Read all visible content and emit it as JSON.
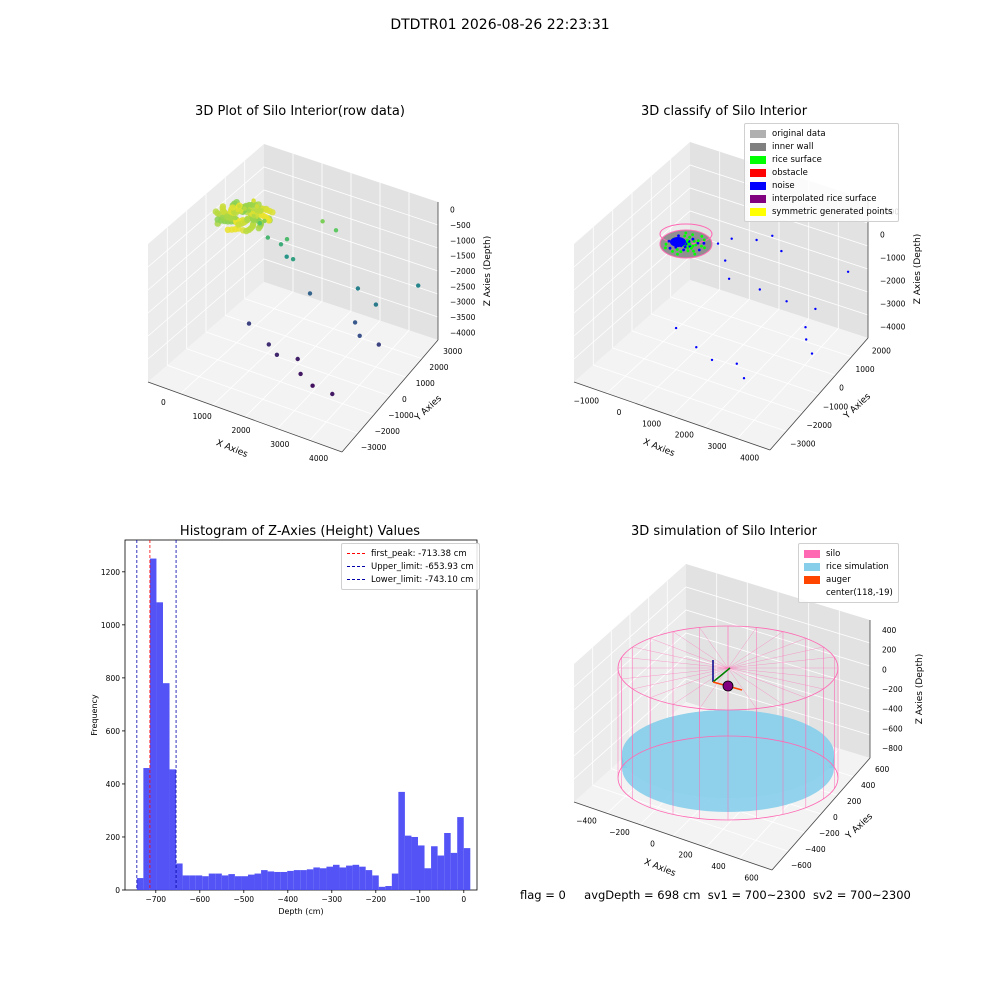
{
  "figure": {
    "title": "DTDTR01 2026-08-26 22:23:31",
    "status": {
      "flag": "flag = 0",
      "avg_depth": "avgDepth = 698 cm",
      "sv1": "sv1 = 700~2300",
      "sv2": "sv2 = 700~2300"
    }
  },
  "chart_data": [
    {
      "type": "scatter",
      "projection": "3d",
      "title": "3D Plot of Silo Interior(row data)",
      "xlabel": "X Axies",
      "ylabel": "Y Axies",
      "zlabel": "Z Axies (Depth)",
      "x_ticks": [
        "0",
        "1000",
        "2000",
        "3000",
        "4000"
      ],
      "y_ticks": [
        "−3000",
        "−2000",
        "−1000",
        "0",
        "1000",
        "2000",
        "3000"
      ],
      "z_ticks": [
        "0",
        "−500",
        "−1000",
        "−1500",
        "−2000",
        "−2500",
        "−3000",
        "−3500",
        "−4000"
      ],
      "xlim": [
        -600,
        4400
      ],
      "ylim": [
        -3300,
        3300
      ],
      "zlim": [
        -4200,
        200
      ],
      "colormap": "viridis (by depth)",
      "grid": true,
      "points": [
        {
          "x": 30,
          "y": 500,
          "z": -150
        },
        {
          "x": 120,
          "y": 400,
          "z": -250
        },
        {
          "x": 200,
          "y": 250,
          "z": -100
        },
        {
          "x": 80,
          "y": 700,
          "z": -300
        },
        {
          "x": 250,
          "y": 600,
          "z": -200
        },
        {
          "x": 300,
          "y": 350,
          "z": -350
        },
        {
          "x": 150,
          "y": 150,
          "z": -50
        },
        {
          "x": 350,
          "y": 800,
          "z": -150
        },
        {
          "x": 50,
          "y": 250,
          "z": -400
        },
        {
          "x": 400,
          "y": 500,
          "z": -300
        },
        {
          "x": 220,
          "y": 900,
          "z": -80
        },
        {
          "x": 100,
          "y": 900,
          "z": -450
        },
        {
          "x": 600,
          "y": 500,
          "z": -400
        },
        {
          "x": 500,
          "y": 900,
          "z": -600
        },
        {
          "x": 200,
          "y": 1300,
          "z": -1000
        },
        {
          "x": 450,
          "y": 1200,
          "z": -1300
        },
        {
          "x": 700,
          "y": 1400,
          "z": -1500
        },
        {
          "x": 900,
          "y": 1300,
          "z": -1200
        },
        {
          "x": 1100,
          "y": 1200,
          "z": -1700
        },
        {
          "x": 800,
          "y": 1500,
          "z": -1900
        },
        {
          "x": 1500,
          "y": 2000,
          "z": -700
        },
        {
          "x": 1800,
          "y": 2100,
          "z": -900
        },
        {
          "x": 2500,
          "y": 1800,
          "z": -2300
        },
        {
          "x": 3100,
          "y": 1500,
          "z": -2400
        },
        {
          "x": 3600,
          "y": 2800,
          "z": -2200
        },
        {
          "x": 2700,
          "y": 1200,
          "z": -3000
        },
        {
          "x": 3000,
          "y": 800,
          "z": -3100
        },
        {
          "x": 3400,
          "y": 1000,
          "z": -3300
        },
        {
          "x": 600,
          "y": -200,
          "z": -3300
        },
        {
          "x": 1200,
          "y": -400,
          "z": -3600
        },
        {
          "x": 1500,
          "y": -600,
          "z": -3700
        },
        {
          "x": 1900,
          "y": -300,
          "z": -3800
        },
        {
          "x": 2200,
          "y": -800,
          "z": -3900
        },
        {
          "x": 2600,
          "y": -1000,
          "z": -4000
        },
        {
          "x": 3200,
          "y": -1200,
          "z": -3900
        },
        {
          "x": 1400,
          "y": 1500,
          "z": -2800
        }
      ]
    },
    {
      "type": "scatter",
      "projection": "3d",
      "title": "3D classify of Silo Interior",
      "xlabel": "X Axies",
      "ylabel": "Y Axies",
      "zlabel": "Z Axies (Depth)",
      "x_ticks": [
        "−1000",
        "0",
        "1000",
        "2000",
        "3000",
        "4000"
      ],
      "y_ticks": [
        "−3000",
        "−2000",
        "−1000",
        "0",
        "1000",
        "2000"
      ],
      "z_ticks": [
        "1000",
        "0",
        "−1000",
        "−2000",
        "−3000",
        "−4000"
      ],
      "xlim": [
        -1500,
        4500
      ],
      "ylim": [
        -3300,
        2600
      ],
      "zlim": [
        -4500,
        1200
      ],
      "grid": true,
      "legend_position": "top-right",
      "legend": [
        {
          "label": "original data",
          "color": "#b0b0b0"
        },
        {
          "label": "inner wall",
          "color": "#808080"
        },
        {
          "label": "rice surface",
          "color": "#00ff00"
        },
        {
          "label": "obstacle",
          "color": "#ff0000"
        },
        {
          "label": "noise",
          "color": "#0000ff"
        },
        {
          "label": "interpolated rice surface",
          "color": "#800080"
        },
        {
          "label": "symmetric generated points",
          "color": "#ffff00"
        }
      ],
      "noise_points": [
        {
          "x": 200,
          "y": 1200,
          "z": -1200
        },
        {
          "x": 600,
          "y": 900,
          "z": -1500
        },
        {
          "x": 1200,
          "y": 1500,
          "z": -800
        },
        {
          "x": 1500,
          "y": 1800,
          "z": -700
        },
        {
          "x": 900,
          "y": 600,
          "z": -1900
        },
        {
          "x": 1600,
          "y": 1000,
          "z": -2300
        },
        {
          "x": 2300,
          "y": 1200,
          "z": -2600
        },
        {
          "x": 3000,
          "y": 1500,
          "z": -2800
        },
        {
          "x": 3700,
          "y": 2000,
          "z": -1300
        },
        {
          "x": 3000,
          "y": 1000,
          "z": -3200
        },
        {
          "x": 3200,
          "y": 700,
          "z": -3400
        },
        {
          "x": 3500,
          "y": 500,
          "z": -3700
        },
        {
          "x": 0,
          "y": -600,
          "z": -3500
        },
        {
          "x": 800,
          "y": -900,
          "z": -3700
        },
        {
          "x": 1400,
          "y": -1100,
          "z": -3800
        },
        {
          "x": 2100,
          "y": -1000,
          "z": -3700
        },
        {
          "x": 2500,
          "y": -1300,
          "z": -3900
        },
        {
          "x": 500,
          "y": 1400,
          "z": -1000
        },
        {
          "x": 1900,
          "y": 1600,
          "z": -1000
        }
      ],
      "rice_surface_cluster": {
        "center_x": 0,
        "center_y": 0,
        "z": -700
      }
    },
    {
      "type": "bar",
      "subtype": "histogram",
      "title": "Histogram of Z-Axies (Height) Values",
      "xlabel": "Depth (cm)",
      "ylabel": "Frequency",
      "xlim": [
        -770,
        30
      ],
      "ylim": [
        0,
        1320
      ],
      "x_ticks": [
        -700,
        -600,
        -500,
        -400,
        -300,
        -200,
        -100,
        0
      ],
      "y_ticks": [
        0,
        200,
        400,
        600,
        800,
        1000,
        1200
      ],
      "bar_color": "#4b4bf5",
      "grid": false,
      "legend_position": "top-right",
      "bin_start": -743.1,
      "bin_width": 14.86,
      "values": [
        45,
        460,
        1250,
        1085,
        780,
        455,
        100,
        55,
        55,
        55,
        52,
        62,
        62,
        55,
        60,
        52,
        52,
        58,
        62,
        75,
        70,
        68,
        68,
        72,
        75,
        75,
        78,
        85,
        82,
        88,
        95,
        85,
        92,
        95,
        88,
        75,
        55,
        12,
        15,
        62,
        370,
        205,
        200,
        168,
        82,
        165,
        130,
        215,
        140,
        275,
        158
      ],
      "reference_lines": [
        {
          "label": "first_peak: -713.38 cm",
          "value": -713.38,
          "color": "#ff0000"
        },
        {
          "label": "Upper_limit: -653.93 cm",
          "value": -653.93,
          "color": "#0000aa"
        },
        {
          "label": "Lower_limit: -743.10 cm",
          "value": -743.1,
          "color": "#0000aa"
        }
      ]
    },
    {
      "type": "scatter",
      "projection": "3d",
      "subtype": "surface simulation",
      "title": "3D simulation of Silo Interior",
      "xlabel": "X Axies",
      "ylabel": "Y Axies",
      "zlabel": "Z Axies (Depth)",
      "x_ticks": [
        "−400",
        "−200",
        "0",
        "200",
        "400",
        "600"
      ],
      "y_ticks": [
        "−600",
        "−400",
        "−200",
        "0",
        "200",
        "400",
        "600"
      ],
      "z_ticks": [
        "400",
        "200",
        "0",
        "−200",
        "−400",
        "−600",
        "−800"
      ],
      "xlim": [
        -600,
        800
      ],
      "ylim": [
        -700,
        700
      ],
      "zlim": [
        -900,
        450
      ],
      "grid": true,
      "legend_position": "top-right",
      "legend": [
        {
          "label": "silo",
          "color": "#ff69b4"
        },
        {
          "label": "rice simulation",
          "color": "#87ceeb"
        },
        {
          "label": "auger",
          "color": "#ff4500"
        },
        {
          "label": "center(118,-19)",
          "color": ""
        }
      ],
      "silo": {
        "radius": 600,
        "z_top": 0,
        "z_bottom": -700
      },
      "rice_surface_z": -698,
      "center": {
        "x": 118,
        "y": -19
      }
    }
  ]
}
